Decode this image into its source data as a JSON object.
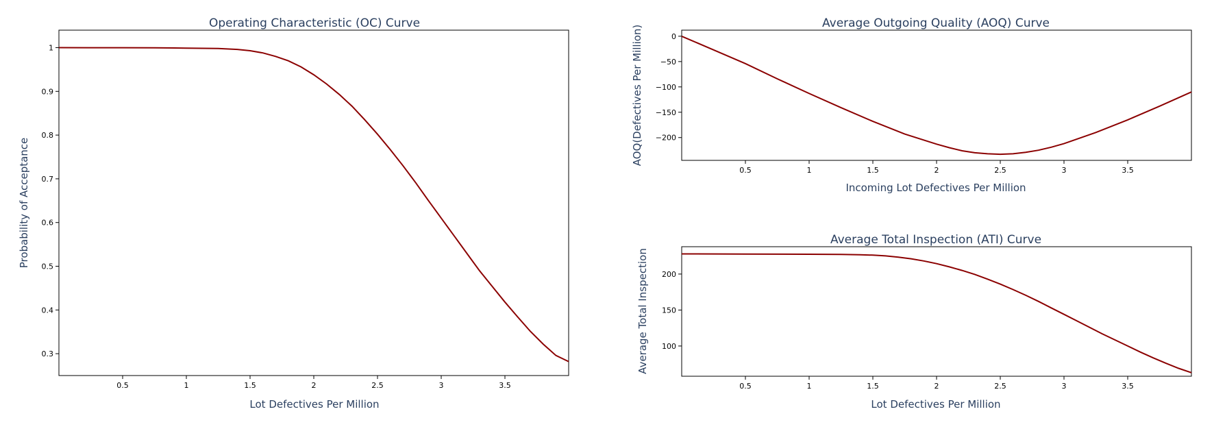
{
  "colors": {
    "line": "#8b0000",
    "axis": "#000000",
    "title_text": "#2a3f5f",
    "tick_text": "#000000",
    "background": "#ffffff"
  },
  "chart_data": [
    {
      "id": "oc",
      "type": "line",
      "title": "Operating Characteristic (OC) Curve",
      "xlabel": "Lot Defectives Per Million",
      "ylabel": "Probability of Acceptance",
      "xlim": [
        0,
        4
      ],
      "ylim": [
        0.25,
        1.04
      ],
      "xticks": [
        0.5,
        1,
        1.5,
        2,
        2.5,
        3,
        3.5
      ],
      "xtick_labels": [
        "0.5",
        "1",
        "1.5",
        "2",
        "2.5",
        "3",
        "3.5"
      ],
      "yticks": [
        0.3,
        0.4,
        0.5,
        0.6,
        0.7,
        0.8,
        0.9,
        1
      ],
      "ytick_labels": [
        "0.3",
        "0.4",
        "0.5",
        "0.6",
        "0.7",
        "0.8",
        "0.9",
        "1"
      ],
      "grid": false,
      "series": [
        {
          "x": [
            0,
            0.25,
            0.5,
            0.75,
            1,
            1.25,
            1.4,
            1.5,
            1.6,
            1.7,
            1.8,
            1.9,
            2,
            2.1,
            2.2,
            2.3,
            2.4,
            2.5,
            2.6,
            2.7,
            2.8,
            2.9,
            3,
            3.1,
            3.2,
            3.3,
            3.4,
            3.5,
            3.6,
            3.7,
            3.8,
            3.9,
            4
          ],
          "y": [
            1,
            0.9999,
            0.9998,
            0.9995,
            0.999,
            0.998,
            0.996,
            0.993,
            0.988,
            0.98,
            0.97,
            0.956,
            0.938,
            0.917,
            0.893,
            0.866,
            0.835,
            0.802,
            0.767,
            0.73,
            0.691,
            0.65,
            0.61,
            0.57,
            0.53,
            0.49,
            0.454,
            0.418,
            0.384,
            0.351,
            0.322,
            0.296,
            0.282
          ]
        }
      ]
    },
    {
      "id": "aoq",
      "type": "line",
      "title": "Average Outgoing Quality (AOQ) Curve",
      "xlabel": "Incoming Lot Defectives Per Million",
      "ylabel": "AOQ(Defectives Per Million)",
      "xlim": [
        0,
        4
      ],
      "ylim": [
        -245,
        12
      ],
      "xticks": [
        0.5,
        1,
        1.5,
        2,
        2.5,
        3,
        3.5
      ],
      "xtick_labels": [
        "0.5",
        "1",
        "1.5",
        "2",
        "2.5",
        "3",
        "3.5"
      ],
      "yticks": [
        -200,
        -150,
        -100,
        -50,
        0
      ],
      "ytick_labels": [
        "−200",
        "−150",
        "−100",
        "−50",
        "0"
      ],
      "grid": false,
      "series": [
        {
          "x": [
            0,
            0.25,
            0.5,
            0.75,
            1,
            1.25,
            1.5,
            1.75,
            2,
            2.1,
            2.2,
            2.3,
            2.4,
            2.5,
            2.6,
            2.7,
            2.8,
            2.9,
            3,
            3.25,
            3.5,
            3.75,
            4
          ],
          "y": [
            0,
            -27,
            -54,
            -84,
            -113,
            -141,
            -168,
            -193,
            -213,
            -220,
            -226,
            -230,
            -232,
            -233,
            -232,
            -229,
            -225,
            -219,
            -212,
            -190,
            -165,
            -138,
            -110
          ]
        }
      ]
    },
    {
      "id": "ati",
      "type": "line",
      "title": "Average Total Inspection (ATI) Curve",
      "xlabel": "Lot Defectives Per Million",
      "ylabel": "Average Total Inspection",
      "xlim": [
        0,
        4
      ],
      "ylim": [
        58,
        238
      ],
      "xticks": [
        0.5,
        1,
        1.5,
        2,
        2.5,
        3,
        3.5
      ],
      "xtick_labels": [
        "0.5",
        "1",
        "1.5",
        "2",
        "2.5",
        "3",
        "3.5"
      ],
      "yticks": [
        100,
        150,
        200
      ],
      "ytick_labels": [
        "100",
        "150",
        "200"
      ],
      "grid": false,
      "series": [
        {
          "x": [
            0,
            0.5,
            1,
            1.25,
            1.4,
            1.5,
            1.6,
            1.7,
            1.8,
            1.9,
            2,
            2.1,
            2.2,
            2.3,
            2.4,
            2.5,
            2.6,
            2.7,
            2.8,
            2.9,
            3,
            3.1,
            3.2,
            3.3,
            3.4,
            3.5,
            3.6,
            3.7,
            3.8,
            3.9,
            4
          ],
          "y": [
            228,
            227.8,
            227.5,
            227.2,
            226.9,
            226.3,
            225.2,
            223.5,
            221.2,
            218.2,
            214.5,
            210,
            205,
            199.5,
            193,
            186,
            178.5,
            170.5,
            162,
            153,
            144,
            135,
            126,
            117,
            108.5,
            100,
            91.5,
            83.5,
            76,
            69,
            63
          ]
        }
      ]
    }
  ]
}
